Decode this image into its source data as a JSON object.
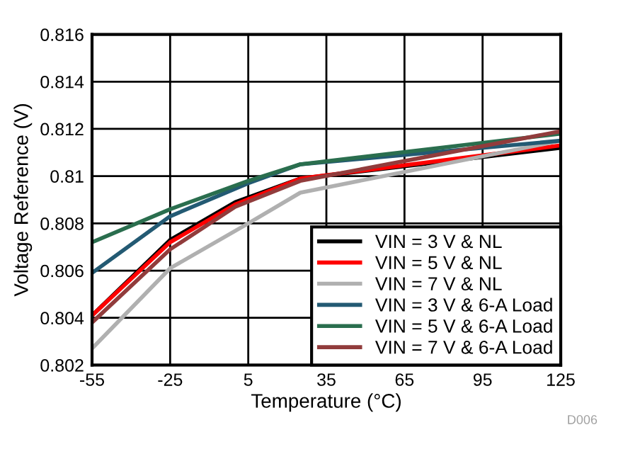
{
  "chart_data": {
    "type": "line",
    "xlabel": "Temperature (°C)",
    "ylabel": "Voltage Reference (V)",
    "x": [
      -55,
      -25,
      0,
      25,
      125
    ],
    "series": [
      {
        "name": "VIN = 3 V & NL",
        "color": "#000000",
        "values": [
          0.8041,
          0.8073,
          0.8089,
          0.8099,
          0.8112
        ]
      },
      {
        "name": "VIN = 5 V & NL",
        "color": "#ff0000",
        "values": [
          0.8041,
          0.8072,
          0.8088,
          0.8099,
          0.8113
        ]
      },
      {
        "name": "VIN = 7 V & NL",
        "color": "#b0b0b0",
        "x": [
          -55,
          -25,
          5,
          25,
          125
        ],
        "values": [
          0.8027,
          0.8061,
          0.808,
          0.8093,
          0.8115
        ]
      },
      {
        "name": "VIN = 3 V & 6-A Load",
        "color": "#235a73",
        "x": [
          -55,
          -25,
          5,
          25,
          125
        ],
        "values": [
          0.8059,
          0.8083,
          0.8097,
          0.8105,
          0.8115
        ]
      },
      {
        "name": "VIN = 5 V & 6-A Load",
        "color": "#2a6e4e",
        "x": [
          -55,
          -25,
          5,
          25,
          125
        ],
        "values": [
          0.8072,
          0.8086,
          0.8098,
          0.8105,
          0.8118
        ]
      },
      {
        "name": "VIN = 7 V & 6-A Load",
        "color": "#913c3c",
        "values": [
          0.8038,
          0.8069,
          0.8087,
          0.8098,
          0.8119
        ]
      }
    ],
    "xlim": [
      -55,
      125
    ],
    "xticks": [
      -55,
      -25,
      5,
      35,
      65,
      95,
      125
    ],
    "ylim": [
      0.802,
      0.816
    ],
    "yticks": [
      0.802,
      0.804,
      0.806,
      0.808,
      0.81,
      0.812,
      0.814,
      0.816
    ],
    "grid": true,
    "legend": "bottom right",
    "marker": "none",
    "line_style": "solid",
    "annotations": [
      "D006"
    ]
  }
}
